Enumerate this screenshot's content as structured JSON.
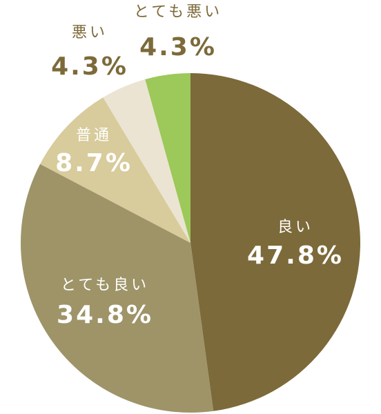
{
  "chart_data": {
    "type": "pie",
    "categories": [
      "良い",
      "とても良い",
      "普通",
      "悪い",
      "とても悪い"
    ],
    "values": [
      47.8,
      34.8,
      8.7,
      4.3,
      4.3
    ],
    "value_labels": [
      "47.8%",
      "34.8%",
      "8.7%",
      "4.3%",
      "4.3%"
    ],
    "colors": [
      "#7d6a3a",
      "#9e9468",
      "#d8cb9c",
      "#ece4d2",
      "#9dc85a"
    ]
  }
}
